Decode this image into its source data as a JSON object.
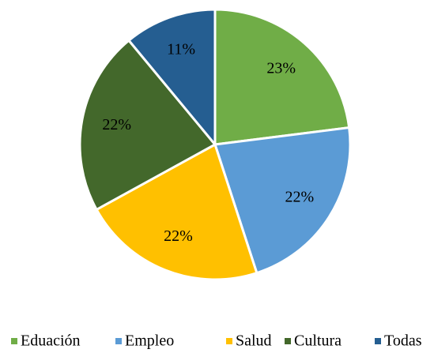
{
  "chart_data": {
    "type": "pie",
    "categories": [
      "Eduación",
      "Empleo",
      "Salud",
      "Cultura",
      "Todas"
    ],
    "values": [
      23,
      22,
      22,
      22,
      11
    ],
    "value_labels": [
      "23%",
      "22%",
      "22%",
      "22%",
      "11%"
    ],
    "colors": [
      "#70ad47",
      "#5b9bd5",
      "#ffc000",
      "#43682b",
      "#255e91"
    ],
    "legend": "bottom"
  }
}
